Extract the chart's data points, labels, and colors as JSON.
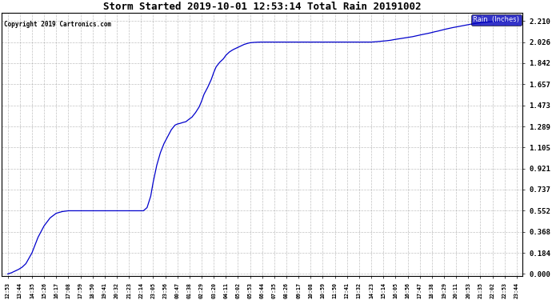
{
  "title": "Storm Started 2019-10-01 12:53:14 Total Rain 20191002",
  "copyright": "Copyright 2019 Cartronics.com",
  "legend_label": "Rain  (Inches)",
  "line_color": "#0000cc",
  "legend_bg": "#0000bb",
  "legend_text_color": "#ffffff",
  "background_color": "#ffffff",
  "grid_color": "#999999",
  "yticks": [
    0.0,
    0.184,
    0.368,
    0.552,
    0.737,
    0.921,
    1.105,
    1.289,
    1.473,
    1.657,
    1.842,
    2.026,
    2.21
  ],
  "xtick_labels": [
    "12:53",
    "13:44",
    "14:35",
    "15:26",
    "16:17",
    "17:08",
    "17:59",
    "18:50",
    "19:41",
    "20:32",
    "21:23",
    "22:14",
    "23:05",
    "23:56",
    "00:47",
    "01:38",
    "02:29",
    "03:20",
    "04:11",
    "05:02",
    "05:53",
    "06:44",
    "07:35",
    "08:26",
    "09:17",
    "10:08",
    "10:59",
    "11:50",
    "12:41",
    "13:32",
    "14:23",
    "15:14",
    "16:05",
    "16:56",
    "17:47",
    "18:38",
    "19:29",
    "20:11",
    "20:53",
    "21:35",
    "22:02",
    "22:53",
    "23:44"
  ],
  "ymin": -0.02,
  "ymax": 2.28,
  "xpts": [
    0.0,
    0.3,
    0.6,
    0.9,
    1.2,
    1.5,
    2.0,
    2.5,
    3.0,
    3.5,
    4.0,
    4.5,
    5.0,
    5.5,
    6.0,
    6.5,
    7.0,
    7.5,
    8.0,
    8.5,
    9.0,
    9.5,
    10.0,
    10.3,
    10.6,
    10.8,
    11.0,
    11.2,
    11.5,
    11.8,
    12.0,
    12.3,
    12.6,
    12.9,
    13.2,
    13.5,
    13.8,
    14.0,
    14.2,
    14.5,
    14.7,
    15.0,
    15.2,
    15.5,
    15.8,
    16.0,
    16.2,
    16.5,
    16.8,
    17.0,
    17.2,
    17.5,
    17.8,
    18.0,
    18.3,
    18.6,
    18.9,
    19.2,
    19.5,
    19.8,
    20.0,
    20.3,
    20.6,
    20.9,
    21.0,
    21.2,
    21.5,
    22.0,
    23.0,
    24.0,
    25.0,
    26.0,
    27.0,
    28.0,
    29.0,
    30.0,
    30.5,
    31.0,
    31.3,
    31.6,
    31.9,
    32.2,
    32.5,
    32.8,
    33.1,
    33.4,
    33.7,
    34.0,
    34.3,
    34.6,
    34.9,
    35.2,
    35.5,
    35.8,
    36.1,
    36.4,
    36.7,
    37.0,
    37.3,
    37.6,
    37.9,
    38.2,
    38.5,
    38.8,
    39.1,
    39.4,
    39.7,
    40.0,
    40.3,
    40.6,
    40.9,
    41.2,
    41.5,
    41.8,
    42.0
  ],
  "ypts": [
    0.0,
    0.01,
    0.025,
    0.04,
    0.06,
    0.09,
    0.184,
    0.32,
    0.42,
    0.49,
    0.53,
    0.545,
    0.552,
    0.552,
    0.552,
    0.552,
    0.552,
    0.552,
    0.552,
    0.552,
    0.552,
    0.552,
    0.552,
    0.552,
    0.552,
    0.552,
    0.552,
    0.552,
    0.58,
    0.68,
    0.8,
    0.95,
    1.06,
    1.14,
    1.2,
    1.26,
    1.3,
    1.31,
    1.315,
    1.325,
    1.33,
    1.355,
    1.37,
    1.41,
    1.46,
    1.51,
    1.57,
    1.63,
    1.7,
    1.76,
    1.81,
    1.85,
    1.88,
    1.91,
    1.94,
    1.96,
    1.975,
    1.99,
    2.005,
    2.015,
    2.02,
    2.023,
    2.025,
    2.026,
    2.026,
    2.026,
    2.026,
    2.026,
    2.026,
    2.026,
    2.026,
    2.026,
    2.026,
    2.026,
    2.026,
    2.026,
    2.03,
    2.035,
    2.038,
    2.042,
    2.048,
    2.053,
    2.058,
    2.063,
    2.068,
    2.073,
    2.08,
    2.087,
    2.094,
    2.1,
    2.107,
    2.115,
    2.122,
    2.13,
    2.138,
    2.145,
    2.152,
    2.158,
    2.164,
    2.17,
    2.176,
    2.182,
    2.187,
    2.192,
    2.196,
    2.199,
    2.202,
    2.205,
    2.207,
    2.208,
    2.209,
    2.209,
    2.21,
    2.21,
    2.21
  ]
}
